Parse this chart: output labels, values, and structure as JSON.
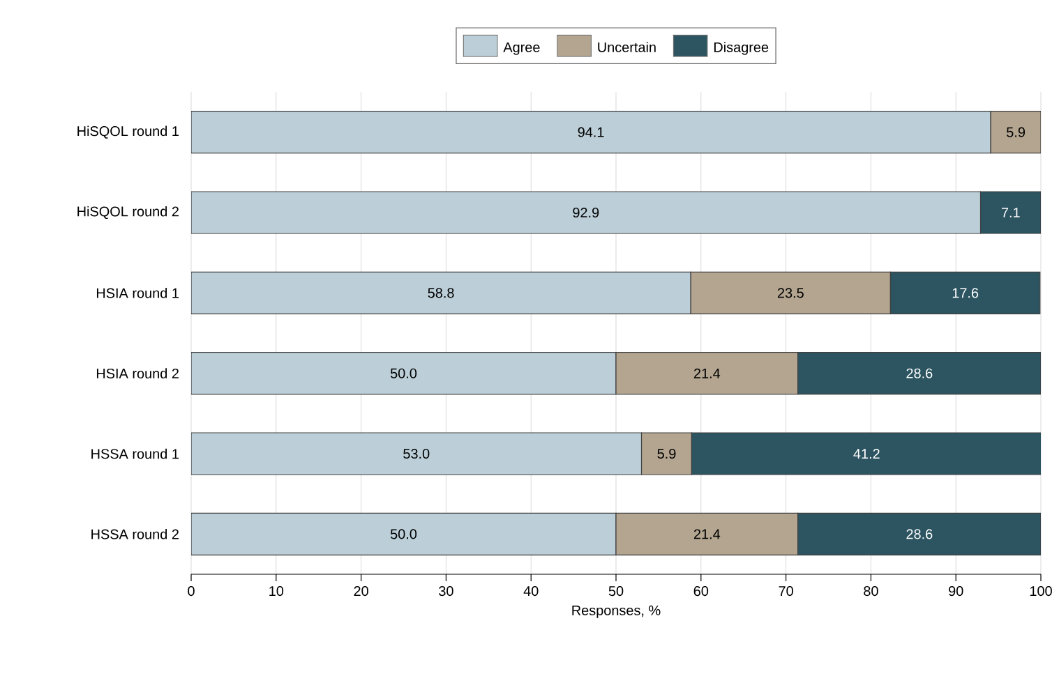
{
  "chart_data": {
    "type": "bar",
    "orientation": "horizontal",
    "stacked": true,
    "xlabel": "Responses, %",
    "categories": [
      "HiSQOL round 1",
      "HiSQOL round 2",
      "HSIA round 1",
      "HSIA round 2",
      "HSSA round 1",
      "HSSA round 2"
    ],
    "series": [
      {
        "name": "Agree",
        "color": "#bccfd8",
        "values": [
          94.1,
          92.9,
          58.8,
          50.0,
          53.0,
          50.0
        ],
        "value_labels": [
          "94.1",
          "92.9",
          "58.8",
          "50.0",
          "53.0",
          "50.0"
        ]
      },
      {
        "name": "Uncertain",
        "color": "#b3a590",
        "values": [
          5.9,
          null,
          23.5,
          21.4,
          5.9,
          21.4
        ],
        "value_labels": [
          "5.9",
          null,
          "23.5",
          "21.4",
          "5.9",
          "21.4"
        ]
      },
      {
        "name": "Disagree",
        "color": "#2c5461",
        "values": [
          null,
          7.1,
          17.6,
          28.6,
          41.2,
          28.6
        ],
        "value_labels": [
          null,
          "7.1",
          "17.6",
          "28.6",
          "41.2",
          "28.6"
        ]
      }
    ],
    "xlim": [
      0,
      100
    ],
    "xticks": [
      0,
      10,
      20,
      30,
      40,
      50,
      60,
      70,
      80,
      90,
      100
    ],
    "grid": "x",
    "legend": "top"
  }
}
